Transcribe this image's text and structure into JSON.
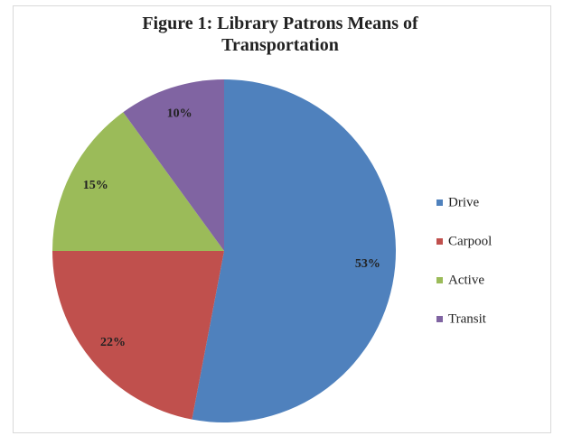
{
  "chart_data": {
    "type": "pie",
    "title": "Figure 1: Library Patrons Means of Transportation",
    "categories": [
      "Drive",
      "Carpool",
      "Active",
      "Transit"
    ],
    "values": [
      53,
      22,
      15,
      10
    ],
    "value_labels": [
      "53%",
      "22%",
      "15%",
      "10%"
    ],
    "colors": [
      "#4f81bd",
      "#c0504d",
      "#9bbb59",
      "#8064a2"
    ],
    "legend": "right"
  }
}
